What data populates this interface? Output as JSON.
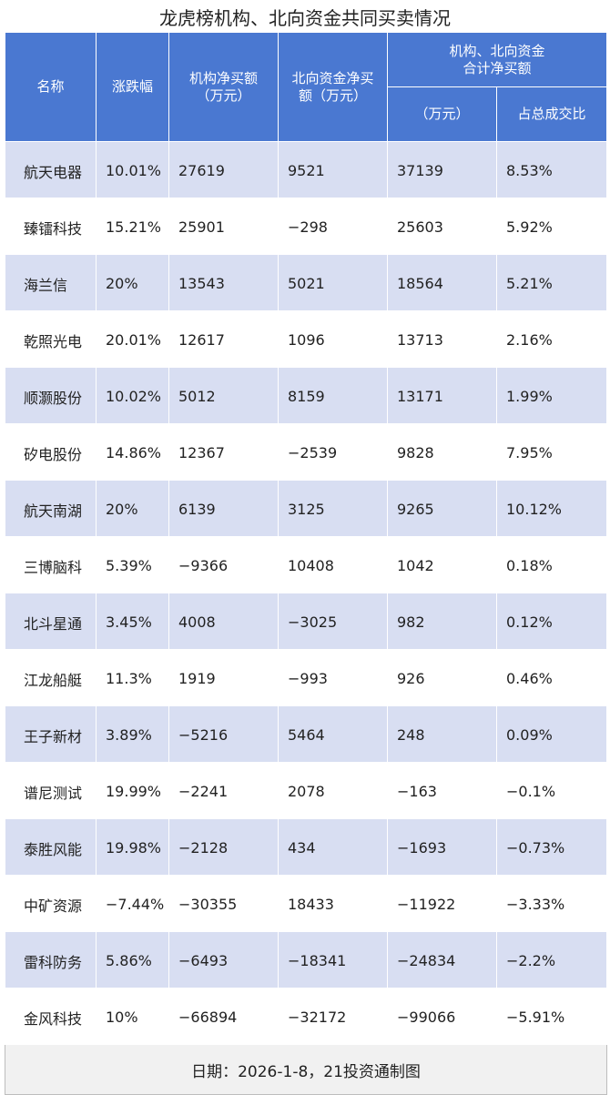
{
  "title": "龙虎榜机构、北向资金共同买卖情况",
  "headers": {
    "name": "名称",
    "change": "涨跌幅",
    "inst_net": "机构净买额\n（万元）",
    "north_net": "北向资金净买\n额（万元）",
    "combined_group": "机构、北向资金\n合计净买额",
    "combined_amount": "（万元）",
    "ratio": "占总成交比"
  },
  "rows": [
    {
      "name": "航天电器",
      "change": "10.01%",
      "inst": "27619",
      "north": "9521",
      "total": "37139",
      "ratio": "8.53%"
    },
    {
      "name": "臻镭科技",
      "change": "15.21%",
      "inst": "25901",
      "north": "−298",
      "total": "25603",
      "ratio": "5.92%"
    },
    {
      "name": "海兰信",
      "change": "20%",
      "inst": "13543",
      "north": "5021",
      "total": "18564",
      "ratio": "5.21%"
    },
    {
      "name": "乾照光电",
      "change": "20.01%",
      "inst": "12617",
      "north": "1096",
      "total": "13713",
      "ratio": "2.16%"
    },
    {
      "name": "顺灏股份",
      "change": "10.02%",
      "inst": "5012",
      "north": "8159",
      "total": "13171",
      "ratio": "1.99%"
    },
    {
      "name": "矽电股份",
      "change": "14.86%",
      "inst": "12367",
      "north": "−2539",
      "total": "9828",
      "ratio": "7.95%"
    },
    {
      "name": "航天南湖",
      "change": "20%",
      "inst": "6139",
      "north": "3125",
      "total": "9265",
      "ratio": "10.12%"
    },
    {
      "name": "三博脑科",
      "change": "5.39%",
      "inst": "−9366",
      "north": "10408",
      "total": "1042",
      "ratio": "0.18%"
    },
    {
      "name": "北斗星通",
      "change": "3.45%",
      "inst": "4008",
      "north": "−3025",
      "total": "982",
      "ratio": "0.12%"
    },
    {
      "name": "江龙船艇",
      "change": "11.3%",
      "inst": "1919",
      "north": "−993",
      "total": "926",
      "ratio": "0.46%"
    },
    {
      "name": "王子新材",
      "change": "3.89%",
      "inst": "−5216",
      "north": "5464",
      "total": "248",
      "ratio": "0.09%"
    },
    {
      "name": "谱尼测试",
      "change": "19.99%",
      "inst": "−2241",
      "north": "2078",
      "total": "−163",
      "ratio": "−0.1%"
    },
    {
      "name": "泰胜风能",
      "change": "19.98%",
      "inst": "−2128",
      "north": "434",
      "total": "−1693",
      "ratio": "−0.73%"
    },
    {
      "name": "中矿资源",
      "change": "−7.44%",
      "inst": "−30355",
      "north": "18433",
      "total": "−11922",
      "ratio": "−3.33%"
    },
    {
      "name": "雷科防务",
      "change": "5.86%",
      "inst": "−6493",
      "north": "−18341",
      "total": "−24834",
      "ratio": "−2.2%"
    },
    {
      "name": "金风科技",
      "change": "10%",
      "inst": "−66894",
      "north": "−32172",
      "total": "−99066",
      "ratio": "−5.91%"
    }
  ],
  "footer": "日期：2026-1-8，21投资通制图"
}
